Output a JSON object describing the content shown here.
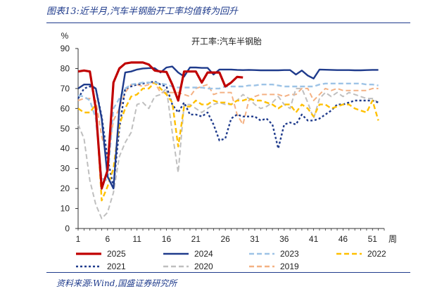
{
  "figure": {
    "title": "图表13:近半月,汽车半钢胎开工率均值转为回升",
    "source": "资料来源:Wind,国盛证券研究所"
  },
  "chart_data": {
    "type": "line",
    "title": "开工率:汽车半钢胎",
    "ylabel": "%",
    "xlabel": "周",
    "ylim": [
      0,
      90
    ],
    "yticks": [
      0,
      10,
      20,
      30,
      40,
      50,
      60,
      70,
      80,
      90
    ],
    "xlim": [
      1,
      53
    ],
    "xticks": [
      1,
      6,
      11,
      16,
      21,
      26,
      31,
      36,
      41,
      46,
      51
    ],
    "grid": false,
    "legend_position": "bottom",
    "series": [
      {
        "name": "2025",
        "color": "#c00000",
        "style": "solid",
        "width": 3.2,
        "values": [
          78.5,
          79,
          78.5,
          60,
          20,
          29,
          73,
          80,
          82.5,
          83,
          83,
          83,
          82,
          79,
          78.5,
          78.3,
          72,
          64,
          78.5,
          78.5,
          78.5,
          73,
          78,
          78,
          78,
          71,
          73,
          75.8,
          75.5
        ]
      },
      {
        "name": "2024",
        "color": "#1f3b8c",
        "style": "solid",
        "width": 2.4,
        "values": [
          70,
          72,
          72,
          70,
          55,
          26,
          20,
          60,
          78,
          78.5,
          79.5,
          80,
          80.2,
          80.2,
          78,
          80.5,
          81,
          78,
          76,
          80.5,
          80.5,
          80.3,
          80.3,
          77,
          79.5,
          79.5,
          79.5,
          79.3,
          79.2,
          79.3,
          79.2,
          79.1,
          79.1,
          79.1,
          79.1,
          79.2,
          79.2,
          77,
          79,
          76.5,
          75,
          79.5,
          79.4,
          79.3,
          79.2,
          79.2,
          79.2,
          79.1,
          79.1,
          79.2,
          79.3,
          79.3
        ]
      },
      {
        "name": "2023",
        "color": "#9dc3e6",
        "style": "dash",
        "width": 2.4,
        "values": [
          66.5,
          66,
          64,
          55,
          25,
          24,
          60,
          65,
          70,
          72,
          72.5,
          73,
          73,
          73,
          72.5,
          72,
          71,
          70.5,
          70.5,
          70.5,
          70.5,
          70.5,
          70,
          70,
          70,
          71,
          71,
          71,
          71,
          71.5,
          71.5,
          72,
          72,
          72,
          71.5,
          71,
          71,
          71,
          71,
          71,
          71,
          72,
          72.5,
          72.5,
          72.5,
          72.5,
          72.5,
          72.5,
          72.5,
          72,
          72,
          71.5
        ]
      },
      {
        "name": "2022",
        "color": "#ffc000",
        "style": "dash",
        "width": 2.4,
        "values": [
          60,
          58,
          58,
          62,
          14,
          21,
          30,
          52,
          60,
          66,
          67,
          70,
          70,
          73,
          70,
          67,
          63,
          41,
          61,
          61,
          64,
          62,
          62,
          64,
          63,
          63,
          62,
          64,
          64,
          65,
          64,
          64,
          63,
          62,
          60,
          62,
          62,
          58,
          62,
          60,
          56,
          62,
          62,
          60,
          61,
          62,
          62,
          60,
          59,
          58,
          64,
          54
        ]
      },
      {
        "name": "2021",
        "color": "#1f3b8c",
        "style": "dot",
        "width": 2.4,
        "values": [
          65,
          70,
          71,
          70,
          56,
          35,
          21,
          50,
          70,
          71,
          72,
          72.5,
          73,
          73.5,
          72,
          71,
          62,
          58,
          63,
          57,
          57,
          56,
          58,
          52,
          44,
          45,
          55,
          57,
          56,
          56,
          56,
          54,
          55,
          52,
          40,
          52,
          53,
          52,
          57,
          54,
          54,
          55,
          57,
          59,
          62,
          62,
          63,
          64,
          64,
          64,
          64,
          63
        ]
      },
      {
        "name": "2020",
        "color": "#bfbfbf",
        "style": "dash",
        "width": 2.0,
        "values": [
          52,
          45,
          24,
          12,
          5,
          8,
          18,
          36,
          43,
          48,
          62,
          63,
          60,
          66,
          67,
          70,
          48,
          28,
          62,
          62,
          60,
          58,
          60,
          62,
          63,
          62,
          62,
          64,
          67,
          65,
          62,
          60,
          61,
          63,
          66,
          62,
          60,
          70,
          70,
          63,
          55,
          65,
          68,
          66,
          68,
          66,
          68,
          67,
          66,
          65,
          65,
          63
        ]
      },
      {
        "name": "2019",
        "color": "#f4b183",
        "style": "dash",
        "width": 2.0,
        "values": [
          64,
          65,
          65,
          64,
          46,
          35,
          54,
          60,
          68,
          72,
          72,
          71,
          72,
          73,
          68,
          68,
          68,
          68,
          67,
          66,
          70,
          71,
          72,
          67,
          68,
          68,
          68,
          57,
          52,
          64,
          66,
          67,
          67,
          67,
          67,
          66,
          67,
          67,
          70,
          70,
          64,
          67,
          70,
          69,
          70,
          69,
          69,
          69,
          69,
          69,
          70,
          70
        ]
      }
    ],
    "legend": [
      "2025",
      "2024",
      "2023",
      "2022",
      "2021",
      "2020",
      "2019"
    ]
  }
}
